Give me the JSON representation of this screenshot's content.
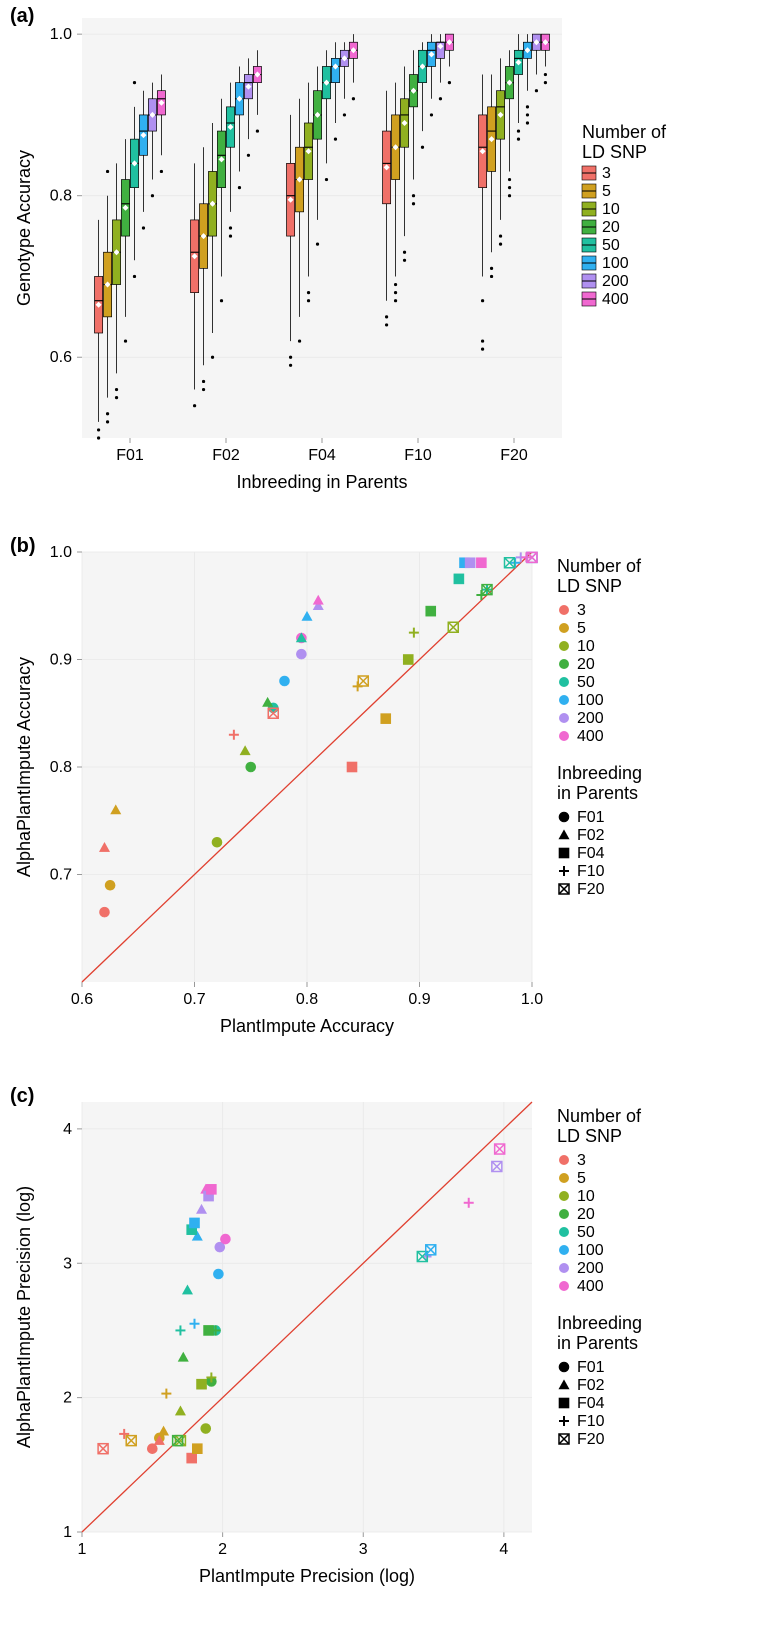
{
  "colors": {
    "snp": {
      "3": "#f07068",
      "5": "#d0a020",
      "10": "#90b020",
      "20": "#40b040",
      "50": "#20c0a0",
      "100": "#30b0f0",
      "200": "#b090f0",
      "400": "#f068d0"
    },
    "plot_bg": "#f5f5f5",
    "grid": "#e8e8e8",
    "axis": "#999999",
    "ref_line": "#e04030",
    "text": "#000000",
    "outlier": "#000000",
    "mean_marker": "#ffffff"
  },
  "snp_levels": [
    "3",
    "5",
    "10",
    "20",
    "50",
    "100",
    "200",
    "400"
  ],
  "inbreeding_levels": [
    "F01",
    "F02",
    "F04",
    "F10",
    "F20"
  ],
  "inbreeding_shapes": {
    "F01": "circle",
    "F02": "triangle",
    "F04": "square",
    "F10": "plus",
    "F20": "crossbox"
  },
  "panel_a": {
    "label": "(a)",
    "x_label": "Inbreeding in Parents",
    "y_label": "Genotype Accuracy",
    "legend_title": "Number of\nLD SNP",
    "ylim": [
      0.5,
      1.02
    ],
    "y_ticks": [
      0.6,
      0.8,
      1.0
    ],
    "categories": [
      "F01",
      "F02",
      "F04",
      "F10",
      "F20"
    ],
    "boxes": {
      "F01": [
        {
          "snp": "3",
          "min": 0.52,
          "q1": 0.63,
          "med": 0.67,
          "q3": 0.7,
          "max": 0.77,
          "mean": 0.665,
          "out": [
            0.5,
            0.51
          ]
        },
        {
          "snp": "5",
          "min": 0.55,
          "q1": 0.65,
          "med": 0.69,
          "q3": 0.73,
          "max": 0.8,
          "mean": 0.69,
          "out": [
            0.52,
            0.53,
            0.83
          ]
        },
        {
          "snp": "10",
          "min": 0.58,
          "q1": 0.69,
          "med": 0.73,
          "q3": 0.77,
          "max": 0.84,
          "mean": 0.73,
          "out": [
            0.55,
            0.56
          ]
        },
        {
          "snp": "20",
          "min": 0.65,
          "q1": 0.75,
          "med": 0.79,
          "q3": 0.82,
          "max": 0.87,
          "mean": 0.785,
          "out": [
            0.62
          ]
        },
        {
          "snp": "50",
          "min": 0.72,
          "q1": 0.81,
          "med": 0.84,
          "q3": 0.87,
          "max": 0.91,
          "mean": 0.84,
          "out": [
            0.7,
            0.94
          ]
        },
        {
          "snp": "100",
          "min": 0.78,
          "q1": 0.85,
          "med": 0.88,
          "q3": 0.9,
          "max": 0.93,
          "mean": 0.875,
          "out": [
            0.76
          ]
        },
        {
          "snp": "200",
          "min": 0.82,
          "q1": 0.88,
          "med": 0.9,
          "q3": 0.92,
          "max": 0.94,
          "mean": 0.9,
          "out": [
            0.8
          ]
        },
        {
          "snp": "400",
          "min": 0.85,
          "q1": 0.9,
          "med": 0.92,
          "q3": 0.93,
          "max": 0.95,
          "mean": 0.915,
          "out": [
            0.83
          ]
        }
      ],
      "F02": [
        {
          "snp": "3",
          "min": 0.56,
          "q1": 0.68,
          "med": 0.73,
          "q3": 0.77,
          "max": 0.84,
          "mean": 0.725,
          "out": [
            0.54
          ]
        },
        {
          "snp": "5",
          "min": 0.59,
          "q1": 0.71,
          "med": 0.75,
          "q3": 0.79,
          "max": 0.86,
          "mean": 0.75,
          "out": [
            0.56,
            0.57
          ]
        },
        {
          "snp": "10",
          "min": 0.63,
          "q1": 0.75,
          "med": 0.79,
          "q3": 0.83,
          "max": 0.89,
          "mean": 0.79,
          "out": [
            0.6
          ]
        },
        {
          "snp": "20",
          "min": 0.7,
          "q1": 0.81,
          "med": 0.85,
          "q3": 0.88,
          "max": 0.92,
          "mean": 0.845,
          "out": [
            0.67
          ]
        },
        {
          "snp": "50",
          "min": 0.78,
          "q1": 0.86,
          "med": 0.89,
          "q3": 0.91,
          "max": 0.94,
          "mean": 0.885,
          "out": [
            0.75,
            0.76
          ]
        },
        {
          "snp": "100",
          "min": 0.83,
          "q1": 0.9,
          "med": 0.92,
          "q3": 0.94,
          "max": 0.96,
          "mean": 0.92,
          "out": [
            0.81
          ]
        },
        {
          "snp": "200",
          "min": 0.87,
          "q1": 0.92,
          "med": 0.94,
          "q3": 0.95,
          "max": 0.97,
          "mean": 0.935,
          "out": [
            0.85
          ]
        },
        {
          "snp": "400",
          "min": 0.9,
          "q1": 0.94,
          "med": 0.95,
          "q3": 0.96,
          "max": 0.98,
          "mean": 0.95,
          "out": [
            0.88
          ]
        }
      ],
      "F04": [
        {
          "snp": "3",
          "min": 0.62,
          "q1": 0.75,
          "med": 0.8,
          "q3": 0.84,
          "max": 0.9,
          "mean": 0.795,
          "out": [
            0.59,
            0.6
          ]
        },
        {
          "snp": "5",
          "min": 0.65,
          "q1": 0.78,
          "med": 0.82,
          "q3": 0.86,
          "max": 0.92,
          "mean": 0.82,
          "out": [
            0.62
          ]
        },
        {
          "snp": "10",
          "min": 0.7,
          "q1": 0.82,
          "med": 0.86,
          "q3": 0.89,
          "max": 0.94,
          "mean": 0.855,
          "out": [
            0.67,
            0.68
          ]
        },
        {
          "snp": "20",
          "min": 0.77,
          "q1": 0.87,
          "med": 0.9,
          "q3": 0.93,
          "max": 0.96,
          "mean": 0.9,
          "out": [
            0.74
          ]
        },
        {
          "snp": "50",
          "min": 0.84,
          "q1": 0.92,
          "med": 0.94,
          "q3": 0.96,
          "max": 0.98,
          "mean": 0.94,
          "out": [
            0.82
          ]
        },
        {
          "snp": "100",
          "min": 0.89,
          "q1": 0.94,
          "med": 0.96,
          "q3": 0.97,
          "max": 0.99,
          "mean": 0.96,
          "out": [
            0.87
          ]
        },
        {
          "snp": "200",
          "min": 0.92,
          "q1": 0.96,
          "med": 0.97,
          "q3": 0.98,
          "max": 0.99,
          "mean": 0.97,
          "out": [
            0.9
          ]
        },
        {
          "snp": "400",
          "min": 0.94,
          "q1": 0.97,
          "med": 0.98,
          "q3": 0.99,
          "max": 1.0,
          "mean": 0.98,
          "out": [
            0.92
          ]
        }
      ],
      "F10": [
        {
          "snp": "3",
          "min": 0.67,
          "q1": 0.79,
          "med": 0.84,
          "q3": 0.88,
          "max": 0.93,
          "mean": 0.835,
          "out": [
            0.64,
            0.65
          ]
        },
        {
          "snp": "5",
          "min": 0.7,
          "q1": 0.82,
          "med": 0.86,
          "q3": 0.9,
          "max": 0.94,
          "mean": 0.86,
          "out": [
            0.67,
            0.68,
            0.69
          ]
        },
        {
          "snp": "10",
          "min": 0.75,
          "q1": 0.86,
          "med": 0.9,
          "q3": 0.92,
          "max": 0.96,
          "mean": 0.89,
          "out": [
            0.72,
            0.73
          ]
        },
        {
          "snp": "20",
          "min": 0.82,
          "q1": 0.91,
          "med": 0.93,
          "q3": 0.95,
          "max": 0.98,
          "mean": 0.93,
          "out": [
            0.79,
            0.8
          ]
        },
        {
          "snp": "50",
          "min": 0.88,
          "q1": 0.94,
          "med": 0.96,
          "q3": 0.98,
          "max": 0.99,
          "mean": 0.96,
          "out": [
            0.86
          ]
        },
        {
          "snp": "100",
          "min": 0.92,
          "q1": 0.96,
          "med": 0.98,
          "q3": 0.99,
          "max": 1.0,
          "mean": 0.975,
          "out": [
            0.9
          ]
        },
        {
          "snp": "200",
          "min": 0.94,
          "q1": 0.97,
          "med": 0.99,
          "q3": 0.99,
          "max": 1.0,
          "mean": 0.985,
          "out": [
            0.92
          ]
        },
        {
          "snp": "400",
          "min": 0.96,
          "q1": 0.98,
          "med": 0.99,
          "q3": 1.0,
          "max": 1.0,
          "mean": 0.99,
          "out": [
            0.94
          ]
        }
      ],
      "F20": [
        {
          "snp": "3",
          "min": 0.7,
          "q1": 0.81,
          "med": 0.86,
          "q3": 0.9,
          "max": 0.95,
          "mean": 0.855,
          "out": [
            0.67,
            0.61,
            0.62
          ]
        },
        {
          "snp": "5",
          "min": 0.73,
          "q1": 0.83,
          "med": 0.88,
          "q3": 0.91,
          "max": 0.95,
          "mean": 0.87,
          "out": [
            0.7,
            0.71
          ]
        },
        {
          "snp": "10",
          "min": 0.77,
          "q1": 0.87,
          "med": 0.91,
          "q3": 0.93,
          "max": 0.97,
          "mean": 0.9,
          "out": [
            0.74,
            0.75
          ]
        },
        {
          "snp": "20",
          "min": 0.83,
          "q1": 0.92,
          "med": 0.94,
          "q3": 0.96,
          "max": 0.98,
          "mean": 0.94,
          "out": [
            0.8,
            0.81,
            0.82
          ]
        },
        {
          "snp": "50",
          "min": 0.89,
          "q1": 0.95,
          "med": 0.97,
          "q3": 0.98,
          "max": 1.0,
          "mean": 0.965,
          "out": [
            0.87,
            0.88
          ]
        },
        {
          "snp": "100",
          "min": 0.93,
          "q1": 0.97,
          "med": 0.98,
          "q3": 0.99,
          "max": 1.0,
          "mean": 0.98,
          "out": [
            0.91,
            0.89,
            0.9
          ]
        },
        {
          "snp": "200",
          "min": 0.95,
          "q1": 0.98,
          "med": 0.99,
          "q3": 1.0,
          "max": 1.0,
          "mean": 0.99,
          "out": [
            0.93
          ]
        },
        {
          "snp": "400",
          "min": 0.96,
          "q1": 0.98,
          "med": 0.99,
          "q3": 1.0,
          "max": 1.0,
          "mean": 0.99,
          "out": [
            0.94,
            0.95
          ]
        }
      ]
    }
  },
  "panel_b": {
    "label": "(b)",
    "x_label": "PlantImpute Accuracy",
    "y_label": "AlphaPlantImpute Accuracy",
    "legend1_title": "Number of\nLD SNP",
    "legend2_title": "Inbreeding\nin Parents",
    "xlim": [
      0.6,
      1.0
    ],
    "ylim": [
      0.6,
      1.0
    ],
    "x_ticks": [
      0.6,
      0.7,
      0.8,
      0.9,
      1.0
    ],
    "y_ticks": [
      0.7,
      0.8,
      0.9,
      1.0
    ],
    "points": [
      {
        "snp": "3",
        "inb": "F01",
        "x": 0.62,
        "y": 0.665
      },
      {
        "snp": "5",
        "inb": "F01",
        "x": 0.625,
        "y": 0.69
      },
      {
        "snp": "10",
        "inb": "F01",
        "x": 0.72,
        "y": 0.73
      },
      {
        "snp": "20",
        "inb": "F01",
        "x": 0.75,
        "y": 0.8
      },
      {
        "snp": "50",
        "inb": "F01",
        "x": 0.77,
        "y": 0.855
      },
      {
        "snp": "100",
        "inb": "F01",
        "x": 0.78,
        "y": 0.88
      },
      {
        "snp": "200",
        "inb": "F01",
        "x": 0.795,
        "y": 0.905
      },
      {
        "snp": "400",
        "inb": "F01",
        "x": 0.795,
        "y": 0.92
      },
      {
        "snp": "3",
        "inb": "F02",
        "x": 0.62,
        "y": 0.725
      },
      {
        "snp": "5",
        "inb": "F02",
        "x": 0.63,
        "y": 0.76
      },
      {
        "snp": "10",
        "inb": "F02",
        "x": 0.745,
        "y": 0.815
      },
      {
        "snp": "20",
        "inb": "F02",
        "x": 0.765,
        "y": 0.86
      },
      {
        "snp": "50",
        "inb": "F02",
        "x": 0.795,
        "y": 0.92
      },
      {
        "snp": "100",
        "inb": "F02",
        "x": 0.8,
        "y": 0.94
      },
      {
        "snp": "200",
        "inb": "F02",
        "x": 0.81,
        "y": 0.95
      },
      {
        "snp": "400",
        "inb": "F02",
        "x": 0.81,
        "y": 0.955
      },
      {
        "snp": "3",
        "inb": "F04",
        "x": 0.84,
        "y": 0.8
      },
      {
        "snp": "5",
        "inb": "F04",
        "x": 0.87,
        "y": 0.845
      },
      {
        "snp": "10",
        "inb": "F04",
        "x": 0.89,
        "y": 0.9
      },
      {
        "snp": "20",
        "inb": "F04",
        "x": 0.91,
        "y": 0.945
      },
      {
        "snp": "50",
        "inb": "F04",
        "x": 0.935,
        "y": 0.975
      },
      {
        "snp": "100",
        "inb": "F04",
        "x": 0.94,
        "y": 0.99
      },
      {
        "snp": "200",
        "inb": "F04",
        "x": 0.945,
        "y": 0.99
      },
      {
        "snp": "400",
        "inb": "F04",
        "x": 0.955,
        "y": 0.99
      },
      {
        "snp": "3",
        "inb": "F10",
        "x": 0.735,
        "y": 0.83
      },
      {
        "snp": "5",
        "inb": "F10",
        "x": 0.845,
        "y": 0.875
      },
      {
        "snp": "10",
        "inb": "F10",
        "x": 0.895,
        "y": 0.925
      },
      {
        "snp": "20",
        "inb": "F10",
        "x": 0.955,
        "y": 0.96
      },
      {
        "snp": "50",
        "inb": "F10",
        "x": 0.96,
        "y": 0.965
      },
      {
        "snp": "100",
        "inb": "F10",
        "x": 0.985,
        "y": 0.99
      },
      {
        "snp": "200",
        "inb": "F10",
        "x": 0.99,
        "y": 0.995
      },
      {
        "snp": "400",
        "inb": "F10",
        "x": 0.995,
        "y": 0.995
      },
      {
        "snp": "3",
        "inb": "F20",
        "x": 0.77,
        "y": 0.85
      },
      {
        "snp": "5",
        "inb": "F20",
        "x": 0.85,
        "y": 0.88
      },
      {
        "snp": "10",
        "inb": "F20",
        "x": 0.93,
        "y": 0.93
      },
      {
        "snp": "20",
        "inb": "F20",
        "x": 0.96,
        "y": 0.965
      },
      {
        "snp": "50",
        "inb": "F20",
        "x": 0.98,
        "y": 0.99
      },
      {
        "snp": "100",
        "inb": "F20",
        "x": 1.0,
        "y": 0.995
      },
      {
        "snp": "200",
        "inb": "F20",
        "x": 1.0,
        "y": 0.995
      },
      {
        "snp": "400",
        "inb": "F20",
        "x": 1.0,
        "y": 0.995
      }
    ]
  },
  "panel_c": {
    "label": "(c)",
    "x_label": "PlantImpute Precision (log)",
    "y_label": "AlphaPlantImpute Precision (log)",
    "legend1_title": "Number of\nLD SNP",
    "legend2_title": "Inbreeding\nin Parents",
    "xlim": [
      1.0,
      4.2
    ],
    "ylim": [
      1.0,
      4.2
    ],
    "x_ticks": [
      1,
      2,
      3,
      4
    ],
    "y_ticks": [
      1,
      2,
      3,
      4
    ],
    "points": [
      {
        "snp": "3",
        "inb": "F01",
        "x": 1.5,
        "y": 1.62
      },
      {
        "snp": "5",
        "inb": "F01",
        "x": 1.55,
        "y": 1.7
      },
      {
        "snp": "10",
        "inb": "F01",
        "x": 1.88,
        "y": 1.77
      },
      {
        "snp": "20",
        "inb": "F01",
        "x": 1.92,
        "y": 2.12
      },
      {
        "snp": "50",
        "inb": "F01",
        "x": 1.95,
        "y": 2.5
      },
      {
        "snp": "100",
        "inb": "F01",
        "x": 1.97,
        "y": 2.92
      },
      {
        "snp": "200",
        "inb": "F01",
        "x": 1.98,
        "y": 3.12
      },
      {
        "snp": "400",
        "inb": "F01",
        "x": 2.02,
        "y": 3.18
      },
      {
        "snp": "3",
        "inb": "F02",
        "x": 1.55,
        "y": 1.68
      },
      {
        "snp": "5",
        "inb": "F02",
        "x": 1.58,
        "y": 1.75
      },
      {
        "snp": "10",
        "inb": "F02",
        "x": 1.7,
        "y": 1.9
      },
      {
        "snp": "20",
        "inb": "F02",
        "x": 1.72,
        "y": 2.3
      },
      {
        "snp": "50",
        "inb": "F02",
        "x": 1.75,
        "y": 2.8
      },
      {
        "snp": "100",
        "inb": "F02",
        "x": 1.82,
        "y": 3.2
      },
      {
        "snp": "200",
        "inb": "F02",
        "x": 1.85,
        "y": 3.4
      },
      {
        "snp": "400",
        "inb": "F02",
        "x": 1.88,
        "y": 3.55
      },
      {
        "snp": "3",
        "inb": "F04",
        "x": 1.78,
        "y": 1.55
      },
      {
        "snp": "5",
        "inb": "F04",
        "x": 1.82,
        "y": 1.62
      },
      {
        "snp": "10",
        "inb": "F04",
        "x": 1.85,
        "y": 2.1
      },
      {
        "snp": "20",
        "inb": "F04",
        "x": 1.9,
        "y": 2.5
      },
      {
        "snp": "50",
        "inb": "F04",
        "x": 1.78,
        "y": 3.25
      },
      {
        "snp": "100",
        "inb": "F04",
        "x": 1.8,
        "y": 3.3
      },
      {
        "snp": "200",
        "inb": "F04",
        "x": 1.9,
        "y": 3.5
      },
      {
        "snp": "400",
        "inb": "F04",
        "x": 1.92,
        "y": 3.55
      },
      {
        "snp": "3",
        "inb": "F10",
        "x": 1.3,
        "y": 1.73
      },
      {
        "snp": "5",
        "inb": "F10",
        "x": 1.6,
        "y": 2.03
      },
      {
        "snp": "10",
        "inb": "F10",
        "x": 1.92,
        "y": 2.15
      },
      {
        "snp": "20",
        "inb": "F10",
        "x": 1.95,
        "y": 2.5
      },
      {
        "snp": "50",
        "inb": "F10",
        "x": 1.7,
        "y": 2.5
      },
      {
        "snp": "100",
        "inb": "F10",
        "x": 1.8,
        "y": 2.55
      },
      {
        "snp": "200",
        "inb": "F10",
        "x": 3.45,
        "y": 3.05
      },
      {
        "snp": "400",
        "inb": "F10",
        "x": 3.75,
        "y": 3.45
      },
      {
        "snp": "3",
        "inb": "F20",
        "x": 1.15,
        "y": 1.62
      },
      {
        "snp": "5",
        "inb": "F20",
        "x": 1.35,
        "y": 1.68
      },
      {
        "snp": "10",
        "inb": "F20",
        "x": 1.7,
        "y": 1.68
      },
      {
        "snp": "20",
        "inb": "F20",
        "x": 1.68,
        "y": 1.68
      },
      {
        "snp": "50",
        "inb": "F20",
        "x": 3.42,
        "y": 3.05
      },
      {
        "snp": "100",
        "inb": "F20",
        "x": 3.48,
        "y": 3.1
      },
      {
        "snp": "200",
        "inb": "F20",
        "x": 3.95,
        "y": 3.72
      },
      {
        "snp": "400",
        "inb": "F20",
        "x": 3.97,
        "y": 3.85
      }
    ]
  }
}
